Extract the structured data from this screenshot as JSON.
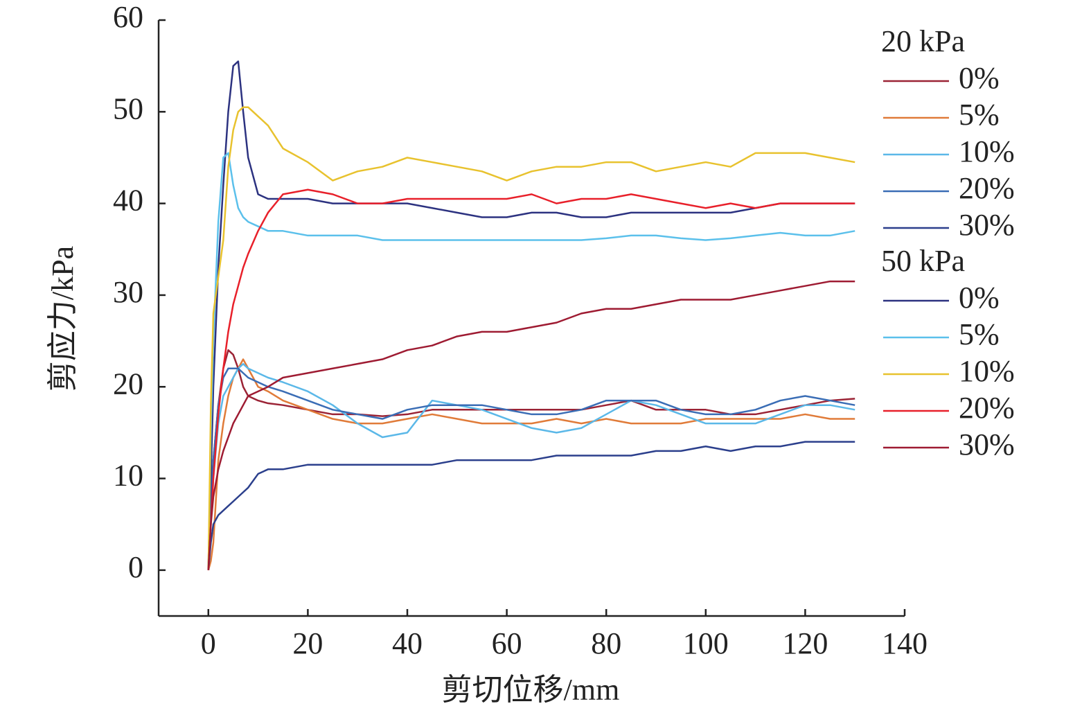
{
  "chart_data": {
    "type": "line",
    "xlabel": "剪切位移/mm",
    "ylabel": "剪应力/kPa",
    "xlim": [
      -10,
      140
    ],
    "ylim": [
      -5,
      60
    ],
    "xticks": [
      0,
      20,
      40,
      60,
      80,
      100,
      120,
      140
    ],
    "yticks": [
      0,
      10,
      20,
      30,
      40,
      50,
      60
    ],
    "x": [
      0,
      0.5,
      1,
      2,
      3,
      4,
      5,
      6,
      7,
      8,
      10,
      12,
      15,
      20,
      25,
      30,
      35,
      40,
      45,
      50,
      55,
      60,
      65,
      70,
      75,
      80,
      85,
      90,
      95,
      100,
      105,
      110,
      115,
      120,
      125,
      130
    ],
    "groups": [
      {
        "title": "20 kPa",
        "series": [
          {
            "name": "0%",
            "color": "#9b2335",
            "values": [
              0,
              8,
              12,
              18,
              22,
              24,
              23.5,
              22,
              20,
              19,
              18.5,
              18.2,
              18,
              17.5,
              17,
              17,
              16.8,
              17,
              17.5,
              17.5,
              17.5,
              17.5,
              17.5,
              17.5,
              17.5,
              18,
              18.5,
              17.5,
              17.5,
              17.5,
              17,
              17,
              17.5,
              18,
              18.5,
              18.7
            ]
          },
          {
            "name": "5%",
            "color": "#e07b39",
            "values": [
              0,
              1,
              3,
              12,
              16,
              19,
              21,
              22,
              23,
              22,
              20,
              19.5,
              18.5,
              17.5,
              16.5,
              16,
              16,
              16.5,
              17,
              16.5,
              16,
              16,
              16,
              16.5,
              16,
              16.5,
              16,
              16,
              16,
              16.5,
              16.5,
              16.5,
              16.5,
              17,
              16.5,
              16.5
            ]
          },
          {
            "name": "10%",
            "color": "#5bb8e8",
            "values": [
              0,
              5,
              10,
              16,
              19,
              20,
              21,
              22,
              22.5,
              22,
              21.5,
              21,
              20.5,
              19.5,
              18,
              16,
              14.5,
              15,
              18.5,
              18,
              17.5,
              16.5,
              15.5,
              15,
              15.5,
              17,
              18.5,
              18,
              17,
              16,
              16,
              16,
              17,
              18,
              18,
              17.5
            ]
          },
          {
            "name": "20%",
            "color": "#3a6db5",
            "values": [
              0,
              6,
              12,
              18,
              21,
              22,
              22,
              22,
              21.5,
              21,
              20.5,
              20,
              19.5,
              18.5,
              17.5,
              17,
              16.5,
              17.5,
              18,
              18,
              18,
              17.5,
              17,
              17,
              17.5,
              18.5,
              18.5,
              18.5,
              17.5,
              17,
              17,
              17.5,
              18.5,
              19,
              18.5,
              18
            ]
          },
          {
            "name": "30%",
            "color": "#2b3f8c",
            "values": [
              0,
              3,
              5,
              6,
              6.5,
              7,
              7.5,
              8,
              8.5,
              9,
              10.5,
              11,
              11,
              11.5,
              11.5,
              11.5,
              11.5,
              11.5,
              11.5,
              12,
              12,
              12,
              12,
              12.5,
              12.5,
              12.5,
              12.5,
              13,
              13,
              13.5,
              13,
              13.5,
              13.5,
              14,
              14,
              14
            ]
          }
        ]
      },
      {
        "title": "50 kPa",
        "series": [
          {
            "name": "0%",
            "color": "#2c3280",
            "values": [
              0,
              10,
              20,
              33,
              42,
              50,
              55,
              55.5,
              50,
              45,
              41,
              40.5,
              40.5,
              40.5,
              40,
              40,
              40,
              40,
              39.5,
              39,
              38.5,
              38.5,
              39,
              39,
              38.5,
              38.5,
              39,
              39,
              39,
              39,
              39,
              39.5,
              40,
              40,
              40,
              40
            ]
          },
          {
            "name": "5%",
            "color": "#5bc0eb",
            "values": [
              0,
              15,
              25,
              38,
              45,
              45.5,
              42,
              39.5,
              38.5,
              38,
              37.5,
              37,
              37,
              36.5,
              36.5,
              36.5,
              36,
              36,
              36,
              36,
              36,
              36,
              36,
              36,
              36,
              36.2,
              36.5,
              36.5,
              36.2,
              36,
              36.2,
              36.5,
              36.8,
              36.5,
              36.5,
              37
            ]
          },
          {
            "name": "10%",
            "color": "#e8c22e",
            "values": [
              0,
              18,
              28,
              32,
              36,
              44,
              48,
              50,
              50.5,
              50.5,
              49.5,
              48.5,
              46,
              44.5,
              42.5,
              43.5,
              44,
              45,
              44.5,
              44,
              43.5,
              42.5,
              43.5,
              44,
              44,
              44.5,
              44.5,
              43.5,
              44,
              44.5,
              44,
              45.5,
              45.5,
              45.5,
              45,
              44.5
            ]
          },
          {
            "name": "20%",
            "color": "#e8202a",
            "values": [
              0,
              5,
              10,
              17,
              22,
              26,
              29,
              31,
              33,
              34.5,
              37,
              39,
              41,
              41.5,
              41,
              40,
              40,
              40.5,
              40.5,
              40.5,
              40.5,
              40.5,
              41,
              40,
              40.5,
              40.5,
              41,
              40.5,
              40,
              39.5,
              40,
              39.5,
              40,
              40,
              40,
              40
            ]
          },
          {
            "name": "30%",
            "color": "#9e1b32",
            "values": [
              0,
              5,
              8,
              11,
              13,
              14.5,
              16,
              17,
              18,
              19,
              19.5,
              20,
              21,
              21.5,
              22,
              22.5,
              23,
              24,
              24.5,
              25.5,
              26,
              26,
              26.5,
              27,
              28,
              28.5,
              28.5,
              29,
              29.5,
              29.5,
              29.5,
              30,
              30.5,
              31,
              31.5,
              31.5
            ]
          }
        ]
      }
    ]
  }
}
